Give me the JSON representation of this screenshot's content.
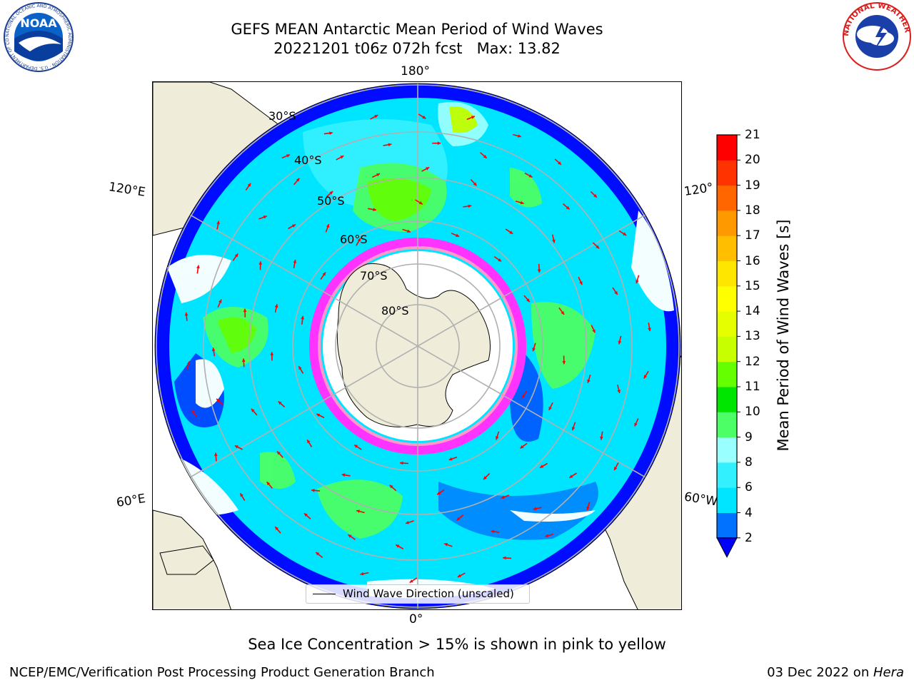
{
  "title": {
    "line1": "GEFS MEAN Antarctic Mean Period of Wind Waves",
    "line2": "20221201 t06z 072h fcst   Max: 13.82"
  },
  "logos": {
    "noaa_text": "NOAA",
    "noaa_ring": "NATIONAL OCEANIC AND ATMOSPHERIC ADMINISTRATION · U.S. DEPARTMENT OF COMMERCE",
    "nws_ring": "NATIONAL WEATHER SERVICE"
  },
  "map": {
    "projection": "south-polar-stereographic",
    "longitude_labels": {
      "top": "180°",
      "left_upper": "120°E",
      "right_upper": "120°",
      "left_lower": "60°E",
      "right_lower": "60°W",
      "bottom": "0°"
    },
    "latitude_labels": [
      "30°S",
      "40°S",
      "50°S",
      "60°S",
      "70°S",
      "80°S"
    ],
    "land_color": "#efedda",
    "ocean_no_data_color": "#ffffff",
    "ice_colors": [
      "#ff33ff",
      "#ff99cc",
      "#ffcc66"
    ],
    "legend": {
      "label": "Wind Wave Direction (unscaled)",
      "arrow_color": "#ff0000"
    }
  },
  "colorbar": {
    "label": "Mean Period of Wind Waves [s]",
    "ticks": [
      "2",
      "4",
      "6",
      "8",
      "9",
      "10",
      "11",
      "12",
      "13",
      "14",
      "15",
      "16",
      "17",
      "18",
      "19",
      "20",
      "21"
    ],
    "colors": [
      "#0072ff",
      "#00e5ff",
      "#33f0ff",
      "#99ffff",
      "#4cff66",
      "#00e600",
      "#66ff00",
      "#c8ff00",
      "#e6ff00",
      "#ffff00",
      "#ffe600",
      "#ffbf00",
      "#ff9900",
      "#ff6600",
      "#ff3300",
      "#ff0000"
    ],
    "under_color": "#0000ff",
    "extend": "min"
  },
  "note": "Sea Ice Concentration > 15% is shown in pink to yellow",
  "footer": {
    "left": "NCEP/EMC/Verification Post Processing Product Generation Branch",
    "right_date": "03 Dec 2022 on ",
    "right_host": "Hera"
  }
}
